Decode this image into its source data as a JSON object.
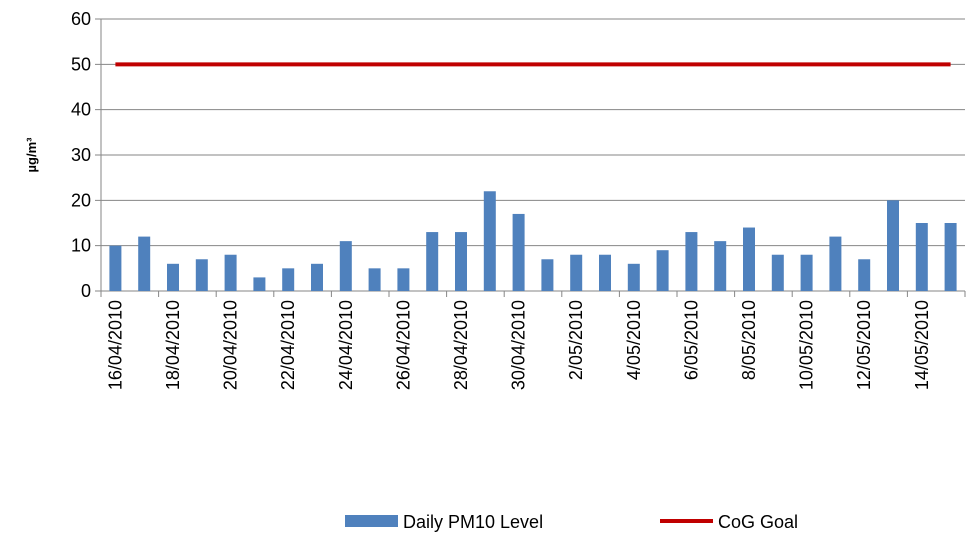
{
  "chart_data": {
    "type": "bar",
    "y_label": "µg/m³",
    "categories": [
      "16/04/2010",
      null,
      "18/04/2010",
      null,
      "20/04/2010",
      null,
      "22/04/2010",
      null,
      "24/04/2010",
      null,
      "26/04/2010",
      null,
      "28/04/2010",
      null,
      "30/04/2010",
      null,
      "2/05/2010",
      null,
      "4/05/2010",
      null,
      "6/05/2010",
      null,
      "8/05/2010",
      null,
      "10/05/2010",
      null,
      "12/05/2010",
      null,
      "14/05/2010",
      null
    ],
    "series": [
      {
        "name": "Daily PM10 Level",
        "type": "bar",
        "color": "#4f81bd",
        "values": [
          10,
          12,
          6,
          7,
          8,
          3,
          5,
          6,
          11,
          5,
          5,
          13,
          13,
          22,
          17,
          7,
          8,
          8,
          6,
          9,
          13,
          11,
          14,
          8,
          8,
          12,
          7,
          20,
          15,
          15
        ]
      },
      {
        "name": "CoG Goal",
        "type": "line",
        "color": "#c00000",
        "values": [
          50,
          50,
          50,
          50,
          50,
          50,
          50,
          50,
          50,
          50,
          50,
          50,
          50,
          50,
          50,
          50,
          50,
          50,
          50,
          50,
          50,
          50,
          50,
          50,
          50,
          50,
          50,
          50,
          50,
          50
        ]
      }
    ],
    "ylim": [
      0,
      60
    ],
    "yticks": [
      0,
      10,
      20,
      30,
      40,
      50,
      60
    ],
    "grid": true,
    "legend": "bottom"
  }
}
